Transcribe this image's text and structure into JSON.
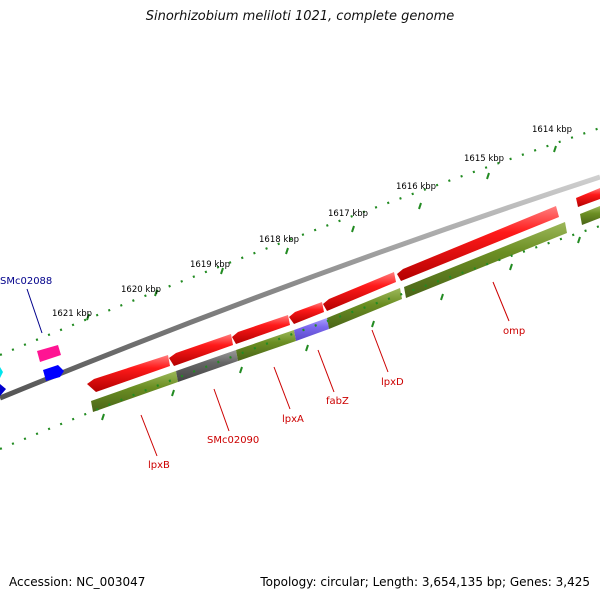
{
  "title": "Sinorhizobium meliloti 1021, complete genome",
  "footer": {
    "accession": "Accession: NC_003047",
    "stats": "Topology: circular; Length: 3,654,135 bp; Genes: 3,425"
  },
  "colors": {
    "backbone": "#7f7f7f",
    "forward_track": "#ff0000",
    "reverse_track": "#6b8e23",
    "hypothetical": "#606060",
    "fabZ": "#7b68ee",
    "kbp_dots": "#228b22",
    "small_pink": "#ff1493",
    "small_blue": "#0000ff",
    "small_cyan": "#00ffff",
    "label_red": "#cc0000",
    "label_blue": "#00008b"
  },
  "scale": {
    "unit": "kbp",
    "ticks": [
      "1621 kbp",
      "1620 kbp",
      "1619 kbp",
      "1618 kbp",
      "1617 kbp",
      "1616 kbp",
      "1615 kbp",
      "1614 kbp"
    ]
  },
  "genes": [
    {
      "name": "SMc02088",
      "color_key": "label_blue"
    },
    {
      "name": "lpxB",
      "color_key": "label_red"
    },
    {
      "name": "SMc02090",
      "color_key": "label_red"
    },
    {
      "name": "lpxA",
      "color_key": "label_red"
    },
    {
      "name": "fabZ",
      "color_key": "label_red"
    },
    {
      "name": "lpxD",
      "color_key": "label_red"
    },
    {
      "name": "omp",
      "color_key": "label_red"
    }
  ]
}
